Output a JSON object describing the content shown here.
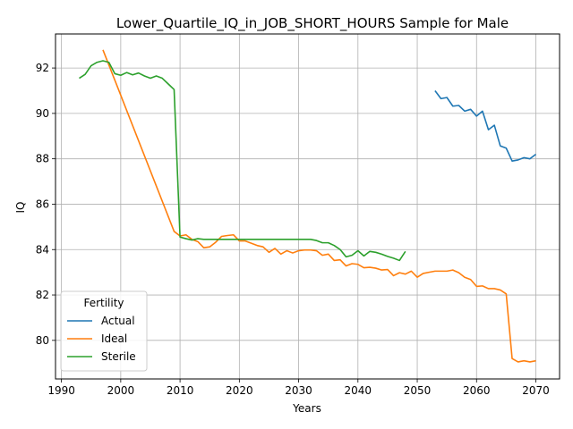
{
  "chart_data": {
    "type": "line",
    "title": "Lower_Quartile_IQ_in_JOB_SHORT_HOURS Sample for Male",
    "xlabel": "Years",
    "ylabel": "IQ",
    "xlim": [
      1989,
      2074
    ],
    "ylim": [
      78.3,
      93.5
    ],
    "x_ticks": [
      1990,
      2000,
      2010,
      2020,
      2030,
      2040,
      2050,
      2060,
      2070
    ],
    "y_ticks": [
      80,
      82,
      84,
      86,
      88,
      90,
      92
    ],
    "grid": true,
    "legend": {
      "title": "Fertility",
      "placement": "lower-left"
    },
    "series": [
      {
        "name": "Actual",
        "color": "#1f77b4",
        "x": [
          2053,
          2054,
          2055,
          2056,
          2057,
          2058,
          2059,
          2060,
          2061,
          2062,
          2063,
          2064,
          2065,
          2066,
          2067,
          2068,
          2069,
          2070
        ],
        "y": [
          91.0,
          90.65,
          90.7,
          90.32,
          90.35,
          90.1,
          90.18,
          89.88,
          90.1,
          89.28,
          89.48,
          88.57,
          88.47,
          87.9,
          87.95,
          88.05,
          88.0,
          88.2
        ]
      },
      {
        "name": "Ideal",
        "color": "#ff7f0e",
        "x": [
          1997,
          2009,
          2010,
          2011,
          2012,
          2013,
          2014,
          2015,
          2016,
          2017,
          2018,
          2019,
          2020,
          2021,
          2022,
          2023,
          2024,
          2025,
          2026,
          2027,
          2028,
          2029,
          2030,
          2031,
          2032,
          2033,
          2034,
          2035,
          2036,
          2037,
          2038,
          2039,
          2040,
          2041,
          2042,
          2043,
          2044,
          2045,
          2046,
          2047,
          2048,
          2049,
          2050,
          2051,
          2052,
          2053,
          2054,
          2055,
          2056,
          2057,
          2058,
          2059,
          2060,
          2061,
          2062,
          2063,
          2064,
          2065,
          2066,
          2067,
          2068,
          2069,
          2070
        ],
        "y": [
          92.8,
          84.8,
          84.6,
          84.65,
          84.45,
          84.35,
          84.08,
          84.12,
          84.32,
          84.58,
          84.62,
          84.65,
          84.38,
          84.38,
          84.28,
          84.18,
          84.12,
          83.88,
          84.05,
          83.8,
          83.95,
          83.85,
          83.95,
          83.98,
          83.98,
          83.95,
          83.75,
          83.8,
          83.52,
          83.55,
          83.28,
          83.38,
          83.35,
          83.2,
          83.22,
          83.18,
          83.1,
          83.12,
          82.85,
          82.98,
          82.92,
          83.05,
          82.78,
          82.95,
          83.0,
          83.05,
          83.05,
          83.05,
          83.1,
          82.98,
          82.78,
          82.68,
          82.38,
          82.4,
          82.28,
          82.28,
          82.22,
          82.05,
          79.2,
          79.05,
          79.1,
          79.05,
          79.1
        ]
      },
      {
        "name": "Sterile",
        "color": "#2ca02c",
        "x": [
          1993,
          1994,
          1995,
          1996,
          1997,
          1998,
          1999,
          2000,
          2001,
          2002,
          2003,
          2004,
          2005,
          2006,
          2007,
          2008,
          2009,
          2010,
          2011,
          2012,
          2013,
          2014,
          2015,
          2016,
          2017,
          2018,
          2019,
          2020,
          2021,
          2022,
          2023,
          2024,
          2025,
          2026,
          2027,
          2028,
          2029,
          2030,
          2031,
          2032,
          2033,
          2034,
          2035,
          2036,
          2037,
          2038,
          2039,
          2040,
          2041,
          2042,
          2043,
          2044,
          2045,
          2046,
          2047,
          2048
        ],
        "y": [
          91.55,
          91.72,
          92.1,
          92.25,
          92.32,
          92.25,
          91.75,
          91.68,
          91.8,
          91.7,
          91.78,
          91.65,
          91.55,
          91.65,
          91.55,
          91.3,
          91.05,
          84.55,
          84.48,
          84.42,
          84.48,
          84.45,
          84.45,
          84.45,
          84.45,
          84.45,
          84.45,
          84.45,
          84.45,
          84.45,
          84.45,
          84.45,
          84.45,
          84.45,
          84.45,
          84.45,
          84.45,
          84.45,
          84.45,
          84.45,
          84.4,
          84.3,
          84.3,
          84.18,
          84.0,
          83.68,
          83.75,
          83.95,
          83.72,
          83.92,
          83.88,
          83.8,
          83.7,
          83.62,
          83.52,
          83.92
        ]
      }
    ]
  }
}
